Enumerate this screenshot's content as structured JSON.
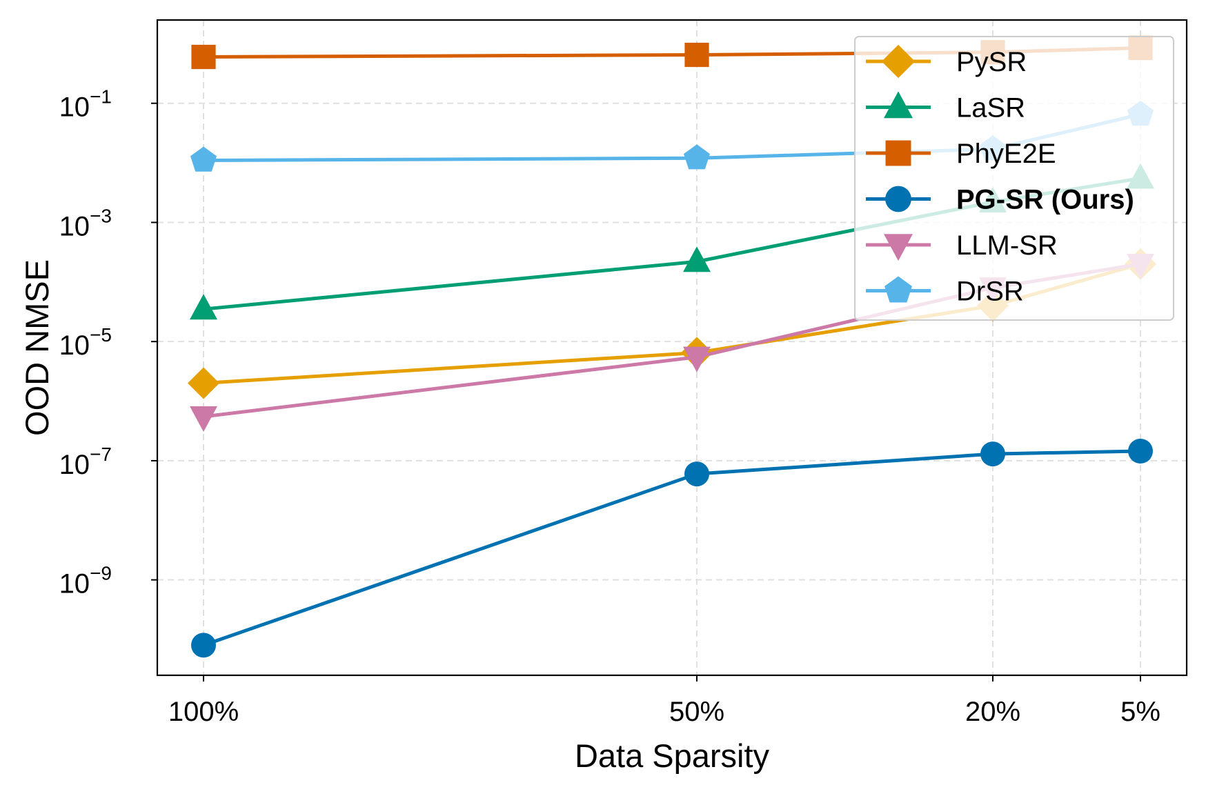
{
  "chart_data": {
    "type": "line",
    "title": "",
    "xlabel": "Data Sparsity",
    "ylabel": "OOD NMSE",
    "categories": [
      "100%",
      "50%",
      "20%",
      "5%"
    ],
    "yscale": "log",
    "ylim": [
      2.5e-11,
      2.5
    ],
    "ytick_exponents": [
      -9,
      -7,
      -5,
      -3,
      -1
    ],
    "grid": true,
    "legend_position": "top-right",
    "series": [
      {
        "name": "PySR",
        "color": "#E69F00",
        "marker": "diamond",
        "bold": false,
        "values": [
          2e-06,
          6.5e-06,
          4e-05,
          0.0002
        ]
      },
      {
        "name": "LaSR",
        "color": "#009E73",
        "marker": "triangle-up",
        "bold": false,
        "values": [
          3.5e-05,
          0.00022,
          0.0022,
          0.0055
        ]
      },
      {
        "name": "PhyE2E",
        "color": "#D55E00",
        "marker": "square",
        "bold": false,
        "values": [
          0.6,
          0.65,
          0.72,
          0.85
        ]
      },
      {
        "name": "PG-SR (Ours)",
        "color": "#0072B2",
        "marker": "circle",
        "bold": true,
        "values": [
          8e-11,
          6e-08,
          1.3e-07,
          1.45e-07
        ]
      },
      {
        "name": "LLM-SR",
        "color": "#CC79A7",
        "marker": "triangle-down",
        "bold": false,
        "values": [
          5.5e-07,
          5.5e-06,
          8e-05,
          0.0002
        ]
      },
      {
        "name": "DrSR",
        "color": "#56B4E9",
        "marker": "pentagon",
        "bold": false,
        "values": [
          0.011,
          0.012,
          0.017,
          0.065
        ]
      }
    ]
  }
}
